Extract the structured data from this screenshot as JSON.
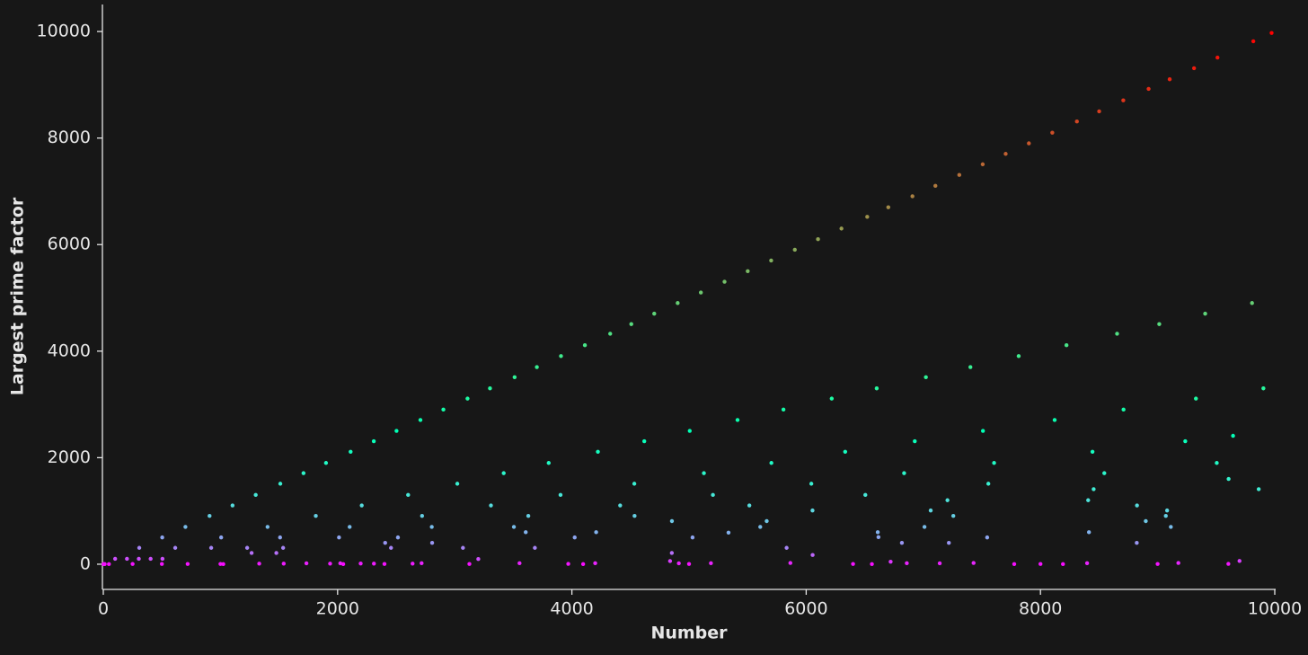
{
  "chart_data": {
    "type": "scatter",
    "x_label": "Number",
    "y_label": "Largest prime factor",
    "colormap": "rainbow",
    "grid": false,
    "xlim": [
      0,
      10000
    ],
    "xticks": [
      0,
      2000,
      4000,
      6000,
      8000,
      10000
    ],
    "ylim": [
      -473,
      10507
    ],
    "yticks": [
      0,
      2000,
      4000,
      6000,
      8000,
      10000
    ],
    "x": [
      101,
      307,
      503,
      701,
      907,
      1103,
      1301,
      1511,
      1709,
      1901,
      2111,
      2309,
      2503,
      2707,
      2903,
      3109,
      3301,
      3511,
      3701,
      3907,
      4111,
      4327,
      4507,
      4703,
      4903,
      5101,
      5303,
      5501,
      5701,
      5903,
      6101,
      6301,
      6521,
      6701,
      6907,
      7103,
      7307,
      7507,
      7703,
      7901,
      8101,
      8311,
      8501,
      8707,
      8923,
      9103,
      9311,
      9511,
      9817,
      9973,
      202,
      614,
      1006,
      1402,
      1814,
      2206,
      2602,
      3022,
      3418,
      3802,
      4222,
      4618,
      5006,
      5414,
      5806,
      6218,
      6602,
      7022,
      7402,
      7814,
      8222,
      8654,
      9014,
      9406,
      9806,
      303,
      921,
      1509,
      2103,
      2721,
      3309,
      3903,
      4533,
      5127,
      5703,
      6333,
      6927,
      7509,
      8121,
      8709,
      9327,
      9903,
      404,
      1228,
      2012,
      2804,
      3628,
      4412,
      5204,
      6044,
      6836,
      7604,
      8444,
      9236,
      9644,
      505,
      1535,
      2515,
      3505,
      4535,
      5515,
      6505,
      7555,
      8545,
      9505,
      1266,
      2406,
      3606,
      4854,
      6054,
      7206,
      8454,
      9606,
      1477,
      2807,
      4207,
      5663,
      7063,
      8407,
      9863,
      2456,
      4024,
      5608,
      7256,
      8824,
      3070,
      5030,
      7010,
      9070,
      3201,
      6055,
      5337,
      6611,
      6617,
      6817,
      5833,
      4853,
      3684,
      7545,
      8414,
      7218,
      8822,
      9081,
      8899,
      9113,
      9699,
      4838,
      6721,
      2,
      4,
      12,
      48,
      250,
      500,
      720,
      1000,
      1024,
      1331,
      1540,
      1734,
      1936,
      2023,
      2048,
      2197,
      2310,
      2400,
      2640,
      2717,
      3125,
      3553,
      3969,
      4096,
      4199,
      4913,
      5000,
      5187,
      5865,
      6400,
      6561,
      6859,
      7140,
      7429,
      7776,
      8000,
      8192,
      8398,
      9000,
      9177,
      9604
    ],
    "values": [
      101,
      307,
      503,
      701,
      907,
      1103,
      1301,
      1511,
      1709,
      1901,
      2111,
      2309,
      2503,
      2707,
      2903,
      3109,
      3301,
      3511,
      3701,
      3907,
      4111,
      4327,
      4507,
      4703,
      4903,
      5101,
      5303,
      5501,
      5701,
      5903,
      6101,
      6301,
      6521,
      6701,
      6907,
      7103,
      7307,
      7507,
      7703,
      7901,
      8101,
      8311,
      8501,
      8707,
      8923,
      9103,
      9311,
      9511,
      9817,
      9973,
      101,
      307,
      503,
      701,
      907,
      1103,
      1301,
      1511,
      1709,
      1901,
      2111,
      2309,
      2503,
      2707,
      2903,
      3109,
      3301,
      3511,
      3701,
      3907,
      4111,
      4327,
      4507,
      4703,
      4903,
      101,
      307,
      503,
      701,
      907,
      1103,
      1301,
      1511,
      1709,
      1901,
      2111,
      2309,
      2503,
      2707,
      2903,
      3109,
      3301,
      101,
      307,
      503,
      701,
      907,
      1103,
      1301,
      1511,
      1709,
      1901,
      2111,
      2309,
      2411,
      101,
      307,
      503,
      701,
      907,
      1103,
      1301,
      1511,
      1709,
      1901,
      211,
      401,
      601,
      809,
      1009,
      1201,
      1409,
      1601,
      211,
      401,
      601,
      809,
      1009,
      1201,
      1409,
      307,
      503,
      701,
      907,
      1103,
      307,
      503,
      701,
      907,
      97,
      173,
      593,
      601,
      509,
      401,
      307,
      211,
      307,
      503,
      601,
      401,
      401,
      1009,
      809,
      701,
      61,
      59,
      47,
      2,
      2,
      3,
      3,
      5,
      5,
      5,
      5,
      2,
      11,
      11,
      17,
      11,
      17,
      2,
      13,
      11,
      5,
      11,
      19,
      5,
      19,
      7,
      2,
      19,
      17,
      5,
      19,
      23,
      5,
      3,
      19,
      17,
      23,
      3,
      5,
      2,
      19,
      5,
      23,
      7
    ]
  }
}
